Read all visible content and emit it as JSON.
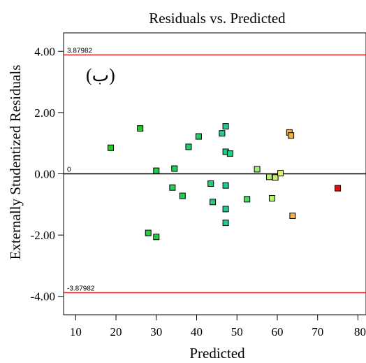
{
  "chart_data": {
    "type": "scatter",
    "title": "Residuals vs. Predicted",
    "xlabel": "Predicted",
    "ylabel": "Externally Studentized Residuals",
    "annotation": "(ب)",
    "xlim": [
      7,
      82
    ],
    "ylim": [
      -4.6,
      4.6
    ],
    "x_ticks": [
      10,
      20,
      30,
      40,
      50,
      60,
      70,
      80
    ],
    "y_ticks": [
      4.0,
      2.0,
      0.0,
      -2.0,
      -4.0
    ],
    "y_tick_labels": [
      "4.00",
      "2.00",
      "0.00",
      "-2.00",
      "-4.00"
    ],
    "reference_lines": [
      {
        "value": 3.87982,
        "label": "3.87982",
        "color": "#e02020"
      },
      {
        "value": 0,
        "label": "0",
        "color": "#000000"
      },
      {
        "value": -3.87982,
        "label": "-3.87982",
        "color": "#e02020"
      }
    ],
    "grid": false,
    "points": [
      {
        "x": 18.7,
        "y": 0.85,
        "color": "#22cc22"
      },
      {
        "x": 26.0,
        "y": 1.48,
        "color": "#22cc22"
      },
      {
        "x": 28.0,
        "y": -1.93,
        "color": "#22cc44"
      },
      {
        "x": 30.0,
        "y": 0.1,
        "color": "#22cc44"
      },
      {
        "x": 30.0,
        "y": -2.06,
        "color": "#22cc44"
      },
      {
        "x": 34.0,
        "y": -0.45,
        "color": "#22cc55"
      },
      {
        "x": 34.5,
        "y": 0.17,
        "color": "#22cc55"
      },
      {
        "x": 36.5,
        "y": -0.72,
        "color": "#22cc55"
      },
      {
        "x": 38.0,
        "y": 0.88,
        "color": "#22cc66"
      },
      {
        "x": 40.5,
        "y": 1.22,
        "color": "#22cc66"
      },
      {
        "x": 43.5,
        "y": -0.32,
        "color": "#22cc77"
      },
      {
        "x": 44.0,
        "y": -0.92,
        "color": "#22cc77"
      },
      {
        "x": 46.3,
        "y": 1.32,
        "color": "#22cc88"
      },
      {
        "x": 47.2,
        "y": 1.55,
        "color": "#22cc88"
      },
      {
        "x": 47.2,
        "y": 0.72,
        "color": "#22cc88"
      },
      {
        "x": 47.2,
        "y": -0.38,
        "color": "#22cc88"
      },
      {
        "x": 47.2,
        "y": -1.15,
        "color": "#22cc88"
      },
      {
        "x": 47.2,
        "y": -1.6,
        "color": "#22cc88"
      },
      {
        "x": 48.3,
        "y": 0.66,
        "color": "#22cc88"
      },
      {
        "x": 52.5,
        "y": -0.83,
        "color": "#44dd66"
      },
      {
        "x": 55.0,
        "y": 0.15,
        "color": "#99ee77"
      },
      {
        "x": 58.0,
        "y": -0.1,
        "color": "#bbee77"
      },
      {
        "x": 58.7,
        "y": -0.8,
        "color": "#bbee77"
      },
      {
        "x": 59.5,
        "y": -0.12,
        "color": "#ccee77"
      },
      {
        "x": 60.8,
        "y": 0.02,
        "color": "#ddee77"
      },
      {
        "x": 63.0,
        "y": 1.35,
        "color": "#f0b040"
      },
      {
        "x": 63.4,
        "y": 1.25,
        "color": "#f0b040"
      },
      {
        "x": 63.8,
        "y": -1.37,
        "color": "#f0b040"
      },
      {
        "x": 75.0,
        "y": -0.47,
        "color": "#dd1111"
      }
    ]
  }
}
